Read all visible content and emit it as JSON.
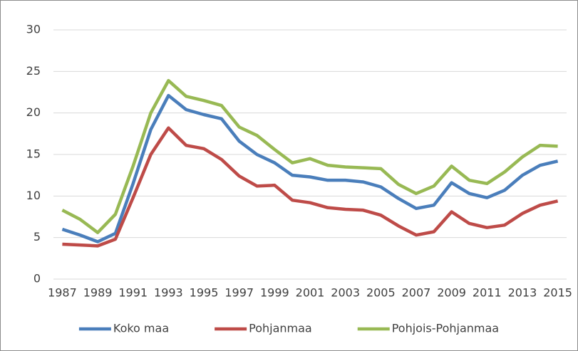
{
  "chart_data": {
    "type": "line",
    "x": [
      1987,
      1988,
      1989,
      1990,
      1991,
      1992,
      1993,
      1994,
      1995,
      1996,
      1997,
      1998,
      1999,
      2000,
      2001,
      2002,
      2003,
      2004,
      2005,
      2006,
      2007,
      2008,
      2009,
      2010,
      2011,
      2012,
      2013,
      2014,
      2015
    ],
    "xlim": [
      1986.5,
      2015.5
    ],
    "xticks": [
      1987,
      1989,
      1991,
      1993,
      1995,
      1997,
      1999,
      2001,
      2003,
      2005,
      2007,
      2009,
      2011,
      2013,
      2015
    ],
    "ylim": [
      0,
      30
    ],
    "yticks": [
      0,
      5,
      10,
      15,
      20,
      25,
      30
    ],
    "grid": true,
    "legend": "bottom",
    "series": [
      {
        "name": "Koko maa",
        "color": "#4a7ebb",
        "values": [
          6.0,
          5.3,
          4.5,
          5.5,
          11.5,
          18.0,
          22.1,
          20.4,
          19.8,
          19.3,
          16.6,
          15.0,
          14.0,
          12.5,
          12.3,
          11.9,
          11.9,
          11.7,
          11.1,
          9.7,
          8.5,
          8.9,
          11.6,
          10.3,
          9.8,
          10.7,
          12.5,
          13.7,
          14.2
        ]
      },
      {
        "name": "Pohjanmaa",
        "color": "#be4b48",
        "values": [
          4.2,
          4.1,
          4.0,
          4.8,
          9.8,
          15.0,
          18.2,
          16.1,
          15.7,
          14.4,
          12.4,
          11.2,
          11.3,
          9.5,
          9.2,
          8.6,
          8.4,
          8.3,
          7.7,
          6.4,
          5.3,
          5.7,
          8.1,
          6.7,
          6.2,
          6.5,
          7.9,
          8.9,
          9.4
        ]
      },
      {
        "name": "Pohjois-Pohjanmaa",
        "color": "#98b954",
        "values": [
          8.3,
          7.2,
          5.6,
          7.8,
          13.6,
          20.0,
          23.9,
          22.0,
          21.5,
          20.9,
          18.3,
          17.3,
          15.6,
          14.0,
          14.5,
          13.7,
          13.5,
          13.4,
          13.3,
          11.4,
          10.3,
          11.2,
          13.6,
          11.9,
          11.5,
          12.9,
          14.7,
          16.1,
          16.0
        ]
      }
    ]
  }
}
